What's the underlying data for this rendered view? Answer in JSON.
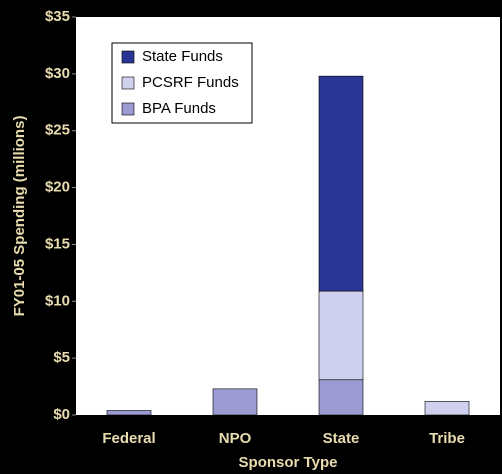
{
  "chart_data": {
    "type": "stacked_bar",
    "categories": [
      "Federal",
      "NPO",
      "State",
      "Tribe"
    ],
    "series": [
      {
        "name": "BPA Funds",
        "color": "#9b9bd1",
        "values": [
          0.4,
          2.3,
          3.1,
          0
        ]
      },
      {
        "name": "PCSRF Funds",
        "color": "#cfcfee",
        "values": [
          0,
          0,
          7.8,
          1.2
        ]
      },
      {
        "name": "State Funds",
        "color": "#2b3594",
        "values": [
          0,
          0,
          18.9,
          0
        ]
      }
    ],
    "ylim": [
      0,
      35
    ],
    "yticks": [
      {
        "value": 0,
        "label": "$0"
      },
      {
        "value": 5,
        "label": "$5"
      },
      {
        "value": 10,
        "label": "$10"
      },
      {
        "value": 15,
        "label": "$15"
      },
      {
        "value": 20,
        "label": "$20"
      },
      {
        "value": 25,
        "label": "$25"
      },
      {
        "value": 30,
        "label": "$30"
      },
      {
        "value": 35,
        "label": "$35"
      }
    ],
    "y_label": "FY01-05 Spending (millions)",
    "x_label": "Sponsor Type"
  }
}
